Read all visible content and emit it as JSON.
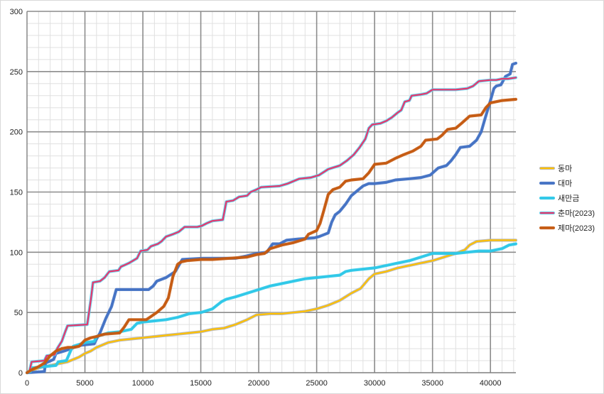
{
  "chart_data": {
    "type": "line",
    "title": "",
    "xlabel": "",
    "ylabel": "",
    "xlim": [
      0,
      42195
    ],
    "ylim": [
      0,
      300
    ],
    "x_ticks": [
      0,
      5000,
      10000,
      15000,
      20000,
      25000,
      30000,
      35000,
      40000
    ],
    "y_ticks": [
      0,
      50,
      100,
      150,
      200,
      250,
      300
    ],
    "x_tick_labels": [
      "0",
      "5000",
      "10000",
      "15000",
      "20000",
      "25000",
      "30000",
      "35000",
      "40000"
    ],
    "y_tick_labels": [
      "0",
      "50",
      "100",
      "150",
      "200",
      "250",
      "300"
    ],
    "grid": true,
    "legend_position": "right",
    "series": [
      {
        "name": "동마",
        "color": "#ffc000",
        "halo": "#b4b4b4",
        "points": [
          [
            0,
            0
          ],
          [
            500,
            2
          ],
          [
            1000,
            4
          ],
          [
            1500,
            5
          ],
          [
            2000,
            6
          ],
          [
            2500,
            7
          ],
          [
            3000,
            8
          ],
          [
            3500,
            9
          ],
          [
            4000,
            11
          ],
          [
            4500,
            13
          ],
          [
            5000,
            16
          ],
          [
            5500,
            18
          ],
          [
            6000,
            21
          ],
          [
            6500,
            23
          ],
          [
            7000,
            25
          ],
          [
            7500,
            26
          ],
          [
            8000,
            27
          ],
          [
            9000,
            28
          ],
          [
            10000,
            29
          ],
          [
            11000,
            30
          ],
          [
            12000,
            31
          ],
          [
            13000,
            32
          ],
          [
            14000,
            33
          ],
          [
            15000,
            34
          ],
          [
            16000,
            36
          ],
          [
            17000,
            37
          ],
          [
            18000,
            40
          ],
          [
            19000,
            44
          ],
          [
            19800,
            48
          ],
          [
            21000,
            49
          ],
          [
            22000,
            49
          ],
          [
            23000,
            50
          ],
          [
            24000,
            51
          ],
          [
            25000,
            53
          ],
          [
            26000,
            56
          ],
          [
            27000,
            60
          ],
          [
            28000,
            66
          ],
          [
            28800,
            70
          ],
          [
            29500,
            78
          ],
          [
            30000,
            82
          ],
          [
            31000,
            84
          ],
          [
            32000,
            87
          ],
          [
            33000,
            89
          ],
          [
            34000,
            91
          ],
          [
            35000,
            93
          ],
          [
            36000,
            96
          ],
          [
            37000,
            99
          ],
          [
            37800,
            102
          ],
          [
            38200,
            106
          ],
          [
            38800,
            109
          ],
          [
            40000,
            110
          ],
          [
            41000,
            110
          ],
          [
            42195,
            110
          ]
        ]
      },
      {
        "name": "대마",
        "color": "#4472c4",
        "halo": "#4472c4",
        "points": [
          [
            0,
            0
          ],
          [
            1500,
            1
          ],
          [
            1600,
            8
          ],
          [
            2300,
            11
          ],
          [
            2500,
            16
          ],
          [
            3200,
            18
          ],
          [
            3800,
            20
          ],
          [
            4300,
            22
          ],
          [
            4800,
            23
          ],
          [
            5800,
            24
          ],
          [
            6000,
            28
          ],
          [
            6300,
            33
          ],
          [
            6800,
            45
          ],
          [
            7300,
            55
          ],
          [
            7700,
            69
          ],
          [
            10500,
            69
          ],
          [
            10900,
            72
          ],
          [
            11200,
            76
          ],
          [
            12000,
            79
          ],
          [
            12800,
            84
          ],
          [
            13400,
            94
          ],
          [
            15200,
            95
          ],
          [
            18000,
            95
          ],
          [
            19000,
            97
          ],
          [
            19800,
            99
          ],
          [
            20700,
            100
          ],
          [
            21200,
            107
          ],
          [
            21800,
            107
          ],
          [
            22400,
            110
          ],
          [
            23400,
            111
          ],
          [
            24800,
            112
          ],
          [
            25200,
            113
          ],
          [
            26000,
            116
          ],
          [
            26300,
            125
          ],
          [
            26600,
            131
          ],
          [
            27000,
            134
          ],
          [
            27500,
            140
          ],
          [
            28000,
            147
          ],
          [
            28500,
            151
          ],
          [
            29000,
            155
          ],
          [
            29500,
            157
          ],
          [
            30000,
            157
          ],
          [
            31000,
            158
          ],
          [
            31800,
            160
          ],
          [
            33000,
            161
          ],
          [
            34000,
            162
          ],
          [
            34800,
            164
          ],
          [
            35500,
            170
          ],
          [
            36200,
            172
          ],
          [
            36600,
            176
          ],
          [
            37000,
            181
          ],
          [
            37400,
            187
          ],
          [
            38200,
            188
          ],
          [
            38800,
            193
          ],
          [
            39200,
            200
          ],
          [
            39500,
            210
          ],
          [
            40000,
            226
          ],
          [
            40300,
            236
          ],
          [
            40500,
            238
          ],
          [
            40900,
            239
          ],
          [
            41300,
            246
          ],
          [
            41700,
            248
          ],
          [
            41900,
            256
          ],
          [
            42195,
            257
          ]
        ]
      },
      {
        "name": "새만금",
        "color": "#2ec8e8",
        "halo": "#2ec8e8",
        "points": [
          [
            0,
            0
          ],
          [
            300,
            1
          ],
          [
            400,
            4
          ],
          [
            2500,
            6
          ],
          [
            2700,
            9
          ],
          [
            3400,
            10
          ],
          [
            3800,
            19
          ],
          [
            4000,
            22
          ],
          [
            5000,
            25
          ],
          [
            5800,
            26
          ],
          [
            6000,
            30
          ],
          [
            7000,
            33
          ],
          [
            8000,
            34
          ],
          [
            9000,
            36
          ],
          [
            9500,
            41
          ],
          [
            10000,
            42
          ],
          [
            11000,
            43
          ],
          [
            12000,
            44
          ],
          [
            13000,
            46
          ],
          [
            14000,
            49
          ],
          [
            15000,
            50
          ],
          [
            16000,
            53
          ],
          [
            16800,
            59
          ],
          [
            17200,
            61
          ],
          [
            18000,
            63
          ],
          [
            19000,
            66
          ],
          [
            20000,
            69
          ],
          [
            21000,
            72
          ],
          [
            22000,
            74
          ],
          [
            23000,
            76
          ],
          [
            24000,
            78
          ],
          [
            25000,
            79
          ],
          [
            26000,
            80
          ],
          [
            27000,
            81
          ],
          [
            27500,
            84
          ],
          [
            28000,
            85
          ],
          [
            29000,
            86
          ],
          [
            30000,
            87
          ],
          [
            31000,
            89
          ],
          [
            32000,
            91
          ],
          [
            33000,
            93
          ],
          [
            34000,
            96
          ],
          [
            35000,
            99
          ],
          [
            36000,
            99
          ],
          [
            37000,
            99
          ],
          [
            38000,
            100
          ],
          [
            39000,
            101
          ],
          [
            40000,
            101
          ],
          [
            41000,
            103
          ],
          [
            41600,
            106
          ],
          [
            42195,
            107
          ]
        ]
      },
      {
        "name": "춘마(2023)",
        "color": "#e8356a",
        "halo": "#5dd0ee",
        "points": [
          [
            0,
            0
          ],
          [
            200,
            1
          ],
          [
            400,
            9
          ],
          [
            1500,
            10
          ],
          [
            1700,
            14
          ],
          [
            2400,
            15
          ],
          [
            2600,
            20
          ],
          [
            3000,
            26
          ],
          [
            3300,
            34
          ],
          [
            3500,
            39
          ],
          [
            5200,
            40
          ],
          [
            5500,
            60
          ],
          [
            5700,
            75
          ],
          [
            6300,
            76
          ],
          [
            6700,
            79
          ],
          [
            7100,
            84
          ],
          [
            7900,
            85
          ],
          [
            8100,
            88
          ],
          [
            8800,
            91
          ],
          [
            9500,
            95
          ],
          [
            9800,
            101
          ],
          [
            10400,
            102
          ],
          [
            10700,
            105
          ],
          [
            11300,
            107
          ],
          [
            11600,
            109
          ],
          [
            12000,
            113
          ],
          [
            12600,
            115
          ],
          [
            13100,
            117
          ],
          [
            13600,
            121
          ],
          [
            14700,
            121
          ],
          [
            15100,
            122
          ],
          [
            15500,
            124
          ],
          [
            16000,
            126
          ],
          [
            16900,
            127
          ],
          [
            17200,
            142
          ],
          [
            17800,
            143
          ],
          [
            18300,
            146
          ],
          [
            19000,
            147
          ],
          [
            19300,
            150
          ],
          [
            19800,
            152
          ],
          [
            20200,
            154
          ],
          [
            21800,
            155
          ],
          [
            22500,
            157
          ],
          [
            23000,
            159
          ],
          [
            23500,
            161
          ],
          [
            24500,
            162
          ],
          [
            25200,
            164
          ],
          [
            26000,
            169
          ],
          [
            27000,
            172
          ],
          [
            27600,
            176
          ],
          [
            28200,
            181
          ],
          [
            28700,
            187
          ],
          [
            29200,
            194
          ],
          [
            29500,
            203
          ],
          [
            29800,
            206
          ],
          [
            30500,
            207
          ],
          [
            31000,
            209
          ],
          [
            31500,
            212
          ],
          [
            32000,
            216
          ],
          [
            32300,
            218
          ],
          [
            32600,
            225
          ],
          [
            33000,
            226
          ],
          [
            33200,
            230
          ],
          [
            34000,
            231
          ],
          [
            34500,
            232
          ],
          [
            35000,
            235
          ],
          [
            36000,
            235
          ],
          [
            37000,
            235
          ],
          [
            38000,
            236
          ],
          [
            38500,
            238
          ],
          [
            39000,
            242
          ],
          [
            40000,
            243
          ],
          [
            40500,
            243
          ],
          [
            41000,
            244
          ],
          [
            41500,
            244
          ],
          [
            42195,
            245
          ]
        ]
      },
      {
        "name": "제마(2023)",
        "color": "#c55a11",
        "halo": "#c55a11",
        "points": [
          [
            0,
            0
          ],
          [
            500,
            3
          ],
          [
            1000,
            5
          ],
          [
            1500,
            8
          ],
          [
            2000,
            14
          ],
          [
            2500,
            18
          ],
          [
            3000,
            20
          ],
          [
            3500,
            21
          ],
          [
            4000,
            21
          ],
          [
            4500,
            22
          ],
          [
            5000,
            27
          ],
          [
            5500,
            29
          ],
          [
            6000,
            30
          ],
          [
            6300,
            31
          ],
          [
            6700,
            32
          ],
          [
            8000,
            33
          ],
          [
            8400,
            38
          ],
          [
            8800,
            44
          ],
          [
            10300,
            44
          ],
          [
            10600,
            46
          ],
          [
            11200,
            50
          ],
          [
            11800,
            55
          ],
          [
            12200,
            62
          ],
          [
            12600,
            80
          ],
          [
            13000,
            90
          ],
          [
            13300,
            92
          ],
          [
            13800,
            93
          ],
          [
            15000,
            94
          ],
          [
            16000,
            94
          ],
          [
            17500,
            95
          ],
          [
            19000,
            96
          ],
          [
            19800,
            98
          ],
          [
            20500,
            99
          ],
          [
            21000,
            103
          ],
          [
            22000,
            106
          ],
          [
            23000,
            108
          ],
          [
            24000,
            111
          ],
          [
            24300,
            115
          ],
          [
            25000,
            118
          ],
          [
            25300,
            124
          ],
          [
            25600,
            134
          ],
          [
            26000,
            148
          ],
          [
            26400,
            152
          ],
          [
            27000,
            154
          ],
          [
            27500,
            159
          ],
          [
            28000,
            160
          ],
          [
            29000,
            161
          ],
          [
            29500,
            166
          ],
          [
            30000,
            173
          ],
          [
            31000,
            174
          ],
          [
            31800,
            178
          ],
          [
            32500,
            181
          ],
          [
            33300,
            184
          ],
          [
            34000,
            188
          ],
          [
            34400,
            193
          ],
          [
            35400,
            194
          ],
          [
            35800,
            197
          ],
          [
            36300,
            202
          ],
          [
            37000,
            203
          ],
          [
            37500,
            207
          ],
          [
            38200,
            213
          ],
          [
            39200,
            214
          ],
          [
            39600,
            220
          ],
          [
            40000,
            224
          ],
          [
            41000,
            226
          ],
          [
            42195,
            227
          ]
        ]
      }
    ]
  }
}
